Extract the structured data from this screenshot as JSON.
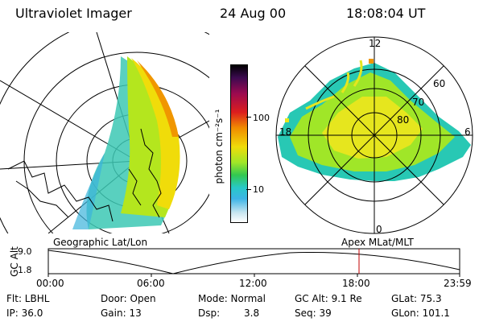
{
  "header": {
    "instrument": "Ultraviolet Imager",
    "date": "24 Aug 00",
    "time": "18:08:04 UT"
  },
  "colorbar": {
    "unit_label": "photon cm⁻²s⁻¹",
    "ticks": [
      "100",
      "10"
    ]
  },
  "polar": {
    "mlt_labels": {
      "top": "12",
      "left": "18",
      "right": "6",
      "bottom": "0"
    },
    "lat_labels": [
      "60",
      "70",
      "80"
    ]
  },
  "panel_titles": {
    "left": "Geographic Lat/Lon",
    "right": "Apex MLat/MLT"
  },
  "alt_plot": {
    "ylabel": "GC Alt",
    "yticks": [
      "9.0",
      "1.8"
    ],
    "xticks": [
      "00:00",
      "06:00",
      "12:00",
      "18:00",
      "23:59"
    ],
    "current_time_marker": "18:08",
    "marker_color": "#c00000"
  },
  "status": {
    "row1": {
      "filter": "Flt: LBHL",
      "door": "Door: Open",
      "mode": "Mode: Normal",
      "gc_alt": "GC Alt: 9.1 Re",
      "glat": "GLat: 75.3"
    },
    "row2": {
      "ip": "IP: 36.0",
      "gain": "Gain: 13",
      "dsp_label": "Dsp:",
      "dsp_value": "3.8",
      "seq": "Seq: 39",
      "glon": "GLon: 101.1"
    }
  }
}
